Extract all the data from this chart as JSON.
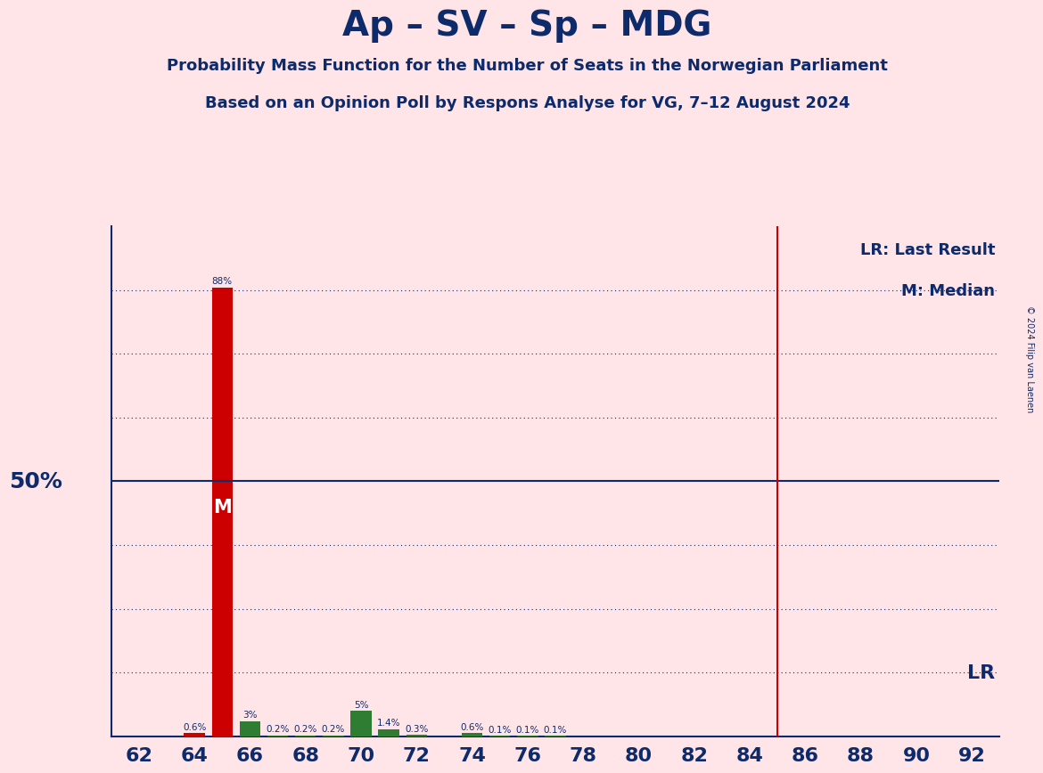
{
  "title": "Ap – SV – Sp – MDG",
  "subtitle1": "Probability Mass Function for the Number of Seats in the Norwegian Parliament",
  "subtitle2": "Based on an Opinion Poll by Respons Analyse for VG, 7–12 August 2024",
  "copyright": "© 2024 Filip van Laenen",
  "background_color": "#FFE4E8",
  "bar_color_red": "#CC0000",
  "bar_color_green": "#2E7D32",
  "title_color": "#0D2B6B",
  "axis_color": "#0D2B6B",
  "lr_color": "#CC0000",
  "x_min": 61,
  "x_max": 93,
  "y_min": 0,
  "y_max": 100,
  "fifty_pct_line": 50,
  "lr_seat": 85,
  "median_seat": 65,
  "seats": [
    62,
    63,
    64,
    65,
    66,
    67,
    68,
    69,
    70,
    71,
    72,
    73,
    74,
    75,
    76,
    77,
    78,
    79,
    80,
    81,
    82,
    83,
    84,
    85,
    86,
    87,
    88,
    89,
    90,
    91,
    92
  ],
  "probabilities": [
    0.0,
    0.0,
    0.6,
    88.0,
    3.0,
    0.2,
    0.2,
    0.2,
    5.0,
    1.4,
    0.3,
    0.0,
    0.6,
    0.1,
    0.1,
    0.1,
    0.0,
    0.0,
    0.0,
    0.0,
    0.0,
    0.0,
    0.0,
    0.0,
    0.0,
    0.0,
    0.0,
    0.0,
    0.0,
    0.0,
    0.0
  ],
  "bar_colors": [
    "#CC0000",
    "#CC0000",
    "#CC0000",
    "#CC0000",
    "#2E7D32",
    "#2E7D32",
    "#2E7D32",
    "#2E7D32",
    "#2E7D32",
    "#2E7D32",
    "#2E7D32",
    "#CC0000",
    "#2E7D32",
    "#2E7D32",
    "#2E7D32",
    "#2E7D32",
    "#CC0000",
    "#CC0000",
    "#CC0000",
    "#CC0000",
    "#CC0000",
    "#CC0000",
    "#CC0000",
    "#CC0000",
    "#CC0000",
    "#CC0000",
    "#CC0000",
    "#CC0000",
    "#CC0000",
    "#CC0000",
    "#CC0000"
  ],
  "x_tick_positions": [
    62,
    64,
    66,
    68,
    70,
    72,
    74,
    76,
    78,
    80,
    82,
    84,
    86,
    88,
    90,
    92
  ],
  "dotted_y_positions": [
    12.5,
    25,
    37.5,
    62.5,
    75,
    87.5
  ],
  "label_50pct": "50%",
  "label_lr": "LR",
  "label_m": "M",
  "legend_lr": "LR: Last Result",
  "legend_m": "M: Median"
}
